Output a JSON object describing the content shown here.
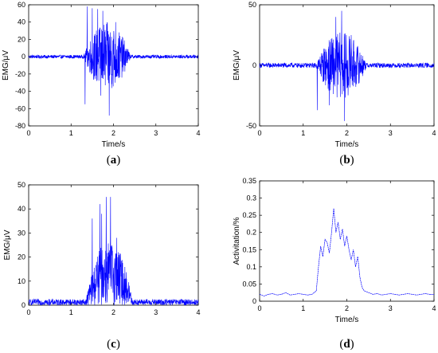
{
  "chart_data": [
    {
      "type": "line",
      "id": "a",
      "panel_label": "a",
      "xlabel": "Time/s",
      "ylabel": "EMG/μV",
      "xlim": [
        0,
        4
      ],
      "ylim": [
        -80,
        60
      ],
      "xticks": [
        0,
        1,
        2,
        3,
        4
      ],
      "yticks": [
        -80,
        -60,
        -40,
        -20,
        0,
        20,
        40,
        60
      ],
      "color": "#0000ff",
      "baseline_amplitude": 2,
      "burst_start": 1.3,
      "burst_end": 2.4,
      "peaks": [
        {
          "x": 1.33,
          "y": -55
        },
        {
          "x": 1.38,
          "y": 58
        },
        {
          "x": 1.5,
          "y": 56
        },
        {
          "x": 1.63,
          "y": 55
        },
        {
          "x": 1.75,
          "y": 53
        },
        {
          "x": 1.9,
          "y": -68
        },
        {
          "x": 1.7,
          "y": -45
        },
        {
          "x": 2.05,
          "y": 40
        }
      ]
    },
    {
      "type": "line",
      "id": "b",
      "panel_label": "b",
      "xlabel": "Time/s",
      "ylabel": "EMG/μV",
      "xlim": [
        0,
        4
      ],
      "ylim": [
        -50,
        50
      ],
      "xticks": [
        0,
        1,
        2,
        3,
        4
      ],
      "yticks": [
        -50,
        0,
        50
      ],
      "color": "#0000ff",
      "baseline_amplitude": 2,
      "burst_start": 1.3,
      "burst_end": 2.45,
      "peaks": [
        {
          "x": 1.32,
          "y": -37
        },
        {
          "x": 1.75,
          "y": 40
        },
        {
          "x": 1.88,
          "y": 45
        },
        {
          "x": 1.95,
          "y": -46
        },
        {
          "x": 1.6,
          "y": -33
        },
        {
          "x": 2.1,
          "y": 25
        }
      ]
    },
    {
      "type": "line",
      "id": "c",
      "panel_label": "c",
      "xlabel": "",
      "ylabel": "EMG/μV",
      "xlim": [
        0,
        4
      ],
      "ylim": [
        0,
        50
      ],
      "xticks": [
        0,
        1,
        2,
        3,
        4
      ],
      "yticks": [
        0,
        10,
        20,
        30,
        40,
        50
      ],
      "color": "#0000ff",
      "baseline_amplitude": 2.5,
      "burst_start": 1.35,
      "burst_end": 2.45,
      "rectified": true,
      "peaks": [
        {
          "x": 1.5,
          "y": 36
        },
        {
          "x": 1.68,
          "y": 42
        },
        {
          "x": 1.83,
          "y": 45
        },
        {
          "x": 1.93,
          "y": 45
        },
        {
          "x": 1.72,
          "y": 38
        },
        {
          "x": 2.08,
          "y": 28
        }
      ]
    },
    {
      "type": "line",
      "id": "d",
      "panel_label": "d",
      "xlabel": "Time/s",
      "ylabel": "Activitation/%",
      "xlim": [
        0,
        4
      ],
      "ylim": [
        0,
        0.35
      ],
      "xticks": [
        0,
        1,
        2,
        3,
        4
      ],
      "yticks": [
        0,
        0.05,
        0.1,
        0.15,
        0.2,
        0.25,
        0.3,
        0.35
      ],
      "ytick_labels": [
        "0",
        "0.05",
        "0.1",
        "0.15",
        "0.2",
        "0.25",
        "0.3",
        "0.35"
      ],
      "color": "#0000ff",
      "x": [
        0,
        0.1,
        0.2,
        0.3,
        0.4,
        0.5,
        0.6,
        0.7,
        0.8,
        0.9,
        1.0,
        1.1,
        1.2,
        1.3,
        1.35,
        1.4,
        1.45,
        1.5,
        1.55,
        1.6,
        1.65,
        1.7,
        1.75,
        1.8,
        1.85,
        1.9,
        1.95,
        2.0,
        2.05,
        2.1,
        2.15,
        2.2,
        2.25,
        2.3,
        2.35,
        2.4,
        2.5,
        2.6,
        2.7,
        2.8,
        2.9,
        3.0,
        3.1,
        3.2,
        3.3,
        3.4,
        3.5,
        3.6,
        3.7,
        3.8,
        3.9,
        4.0
      ],
      "y": [
        0.02,
        0.015,
        0.02,
        0.022,
        0.018,
        0.02,
        0.025,
        0.018,
        0.02,
        0.022,
        0.02,
        0.018,
        0.02,
        0.03,
        0.1,
        0.16,
        0.13,
        0.18,
        0.17,
        0.14,
        0.2,
        0.27,
        0.2,
        0.23,
        0.18,
        0.21,
        0.16,
        0.19,
        0.15,
        0.12,
        0.15,
        0.1,
        0.13,
        0.07,
        0.04,
        0.03,
        0.025,
        0.02,
        0.022,
        0.018,
        0.02,
        0.022,
        0.02,
        0.018,
        0.02,
        0.022,
        0.02,
        0.018,
        0.02,
        0.022,
        0.02,
        0.02
      ]
    }
  ]
}
